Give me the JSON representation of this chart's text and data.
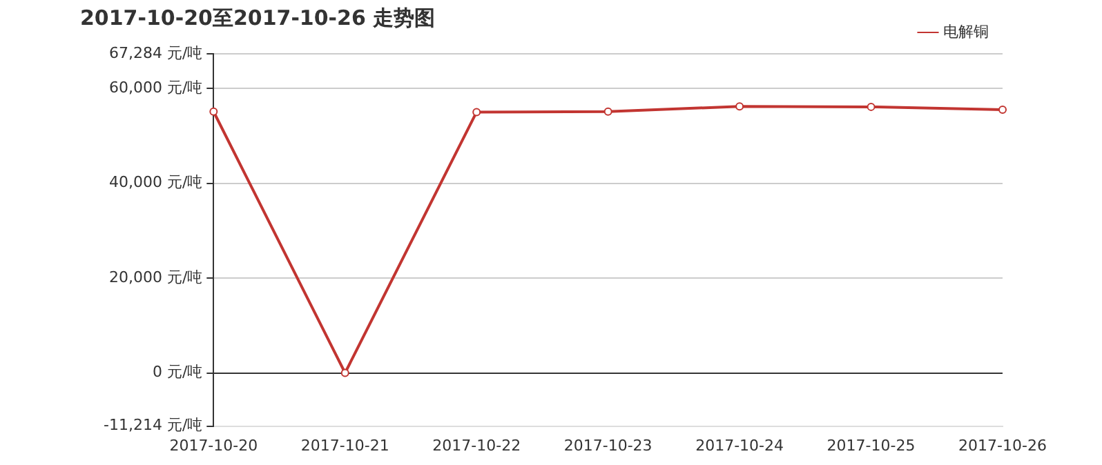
{
  "chart_data": {
    "type": "line",
    "title": "2017-10-20至2017-10-26 走势图",
    "categories": [
      "2017-10-20",
      "2017-10-21",
      "2017-10-22",
      "2017-10-23",
      "2017-10-24",
      "2017-10-25",
      "2017-10-26"
    ],
    "series": [
      {
        "name": "电解铜",
        "color": "#c23531",
        "values": [
          55100,
          0,
          55000,
          55100,
          56200,
          56100,
          55500
        ]
      }
    ],
    "ylim": [
      -11214,
      67284
    ],
    "yticks": [
      {
        "value": -11214,
        "label": "-11,214 元/吨"
      },
      {
        "value": 0,
        "label": "0 元/吨"
      },
      {
        "value": 20000,
        "label": "20,000 元/吨"
      },
      {
        "value": 40000,
        "label": "40,000 元/吨"
      },
      {
        "value": 60000,
        "label": "60,000 元/吨"
      },
      {
        "value": 67284,
        "label": "67,284 元/吨"
      }
    ],
    "grid": "y",
    "legend": "top right",
    "marker": "circle",
    "line_style": "solid"
  }
}
